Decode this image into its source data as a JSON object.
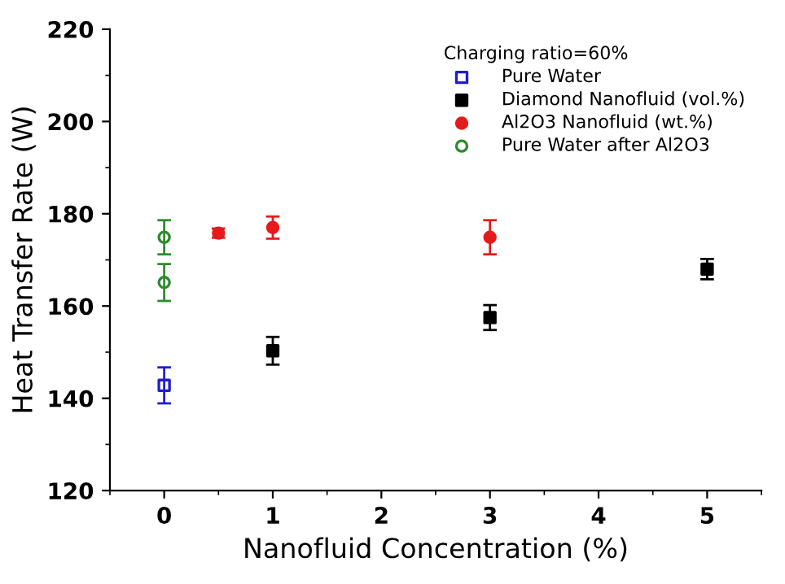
{
  "chart_data": {
    "type": "scatter",
    "xlabel": "Nanofluid Concentration (%)",
    "ylabel": "Heat Transfer Rate (W)",
    "legend_title": "Charging ratio=60%",
    "xlim": [
      -0.5,
      5.5
    ],
    "xticks": [
      0,
      1,
      2,
      3,
      4,
      5
    ],
    "ylim": [
      120,
      220
    ],
    "yticks": [
      120,
      140,
      160,
      180,
      200,
      220
    ],
    "grid": false,
    "legend": "top right",
    "series": [
      {
        "name": "Pure Water",
        "color": "#1f1fd0",
        "marker": "square",
        "x": [
          0
        ],
        "values": [
          142.8
        ],
        "errors": [
          3.9
        ]
      },
      {
        "name": "Diamond Nanofluid (vol.%)",
        "color": "#000000",
        "marker": "square",
        "x": [
          1,
          3,
          5
        ],
        "values": [
          150.3,
          157.5,
          168
        ],
        "errors": [
          3,
          2.7,
          2.2
        ]
      },
      {
        "name": "Al2O3 Nanofluid (wt.%)",
        "color": "#e41a1c",
        "marker": "circle",
        "x": [
          0.5,
          1,
          3
        ],
        "values": [
          175.8,
          177,
          174.9
        ],
        "errors": [
          1,
          2.4,
          3.7
        ]
      },
      {
        "name": "Pure Water after Al2O3",
        "color": "#2e8b2e",
        "marker": "circle",
        "x": [
          0,
          0
        ],
        "values": [
          174.9,
          165.1
        ],
        "errors": [
          3.7,
          4
        ]
      }
    ]
  }
}
